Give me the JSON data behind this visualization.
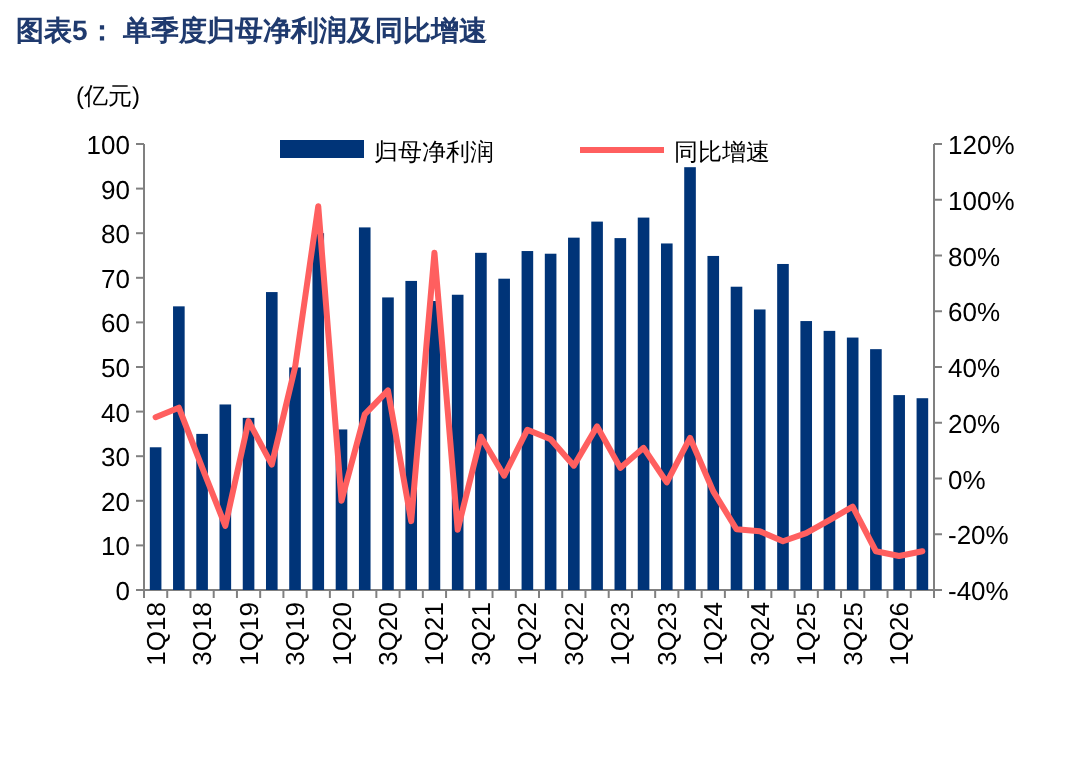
{
  "chart_data": {
    "type": "bar",
    "title": "图表5：  单季度归母净利润及同比增速",
    "ylabel": "(亿元)",
    "categories": [
      "1Q18",
      null,
      "3Q18",
      null,
      "1Q19",
      null,
      "3Q19",
      null,
      "1Q20",
      null,
      "3Q20",
      null,
      "1Q21",
      null,
      "3Q21",
      null,
      "1Q22",
      null,
      "3Q22",
      null,
      "1Q23",
      null,
      "3Q23",
      null,
      "1Q24",
      null,
      "3Q24",
      null,
      "1Q25",
      null,
      "3Q25",
      null,
      "1Q26",
      null
    ],
    "series": [
      {
        "name": "归母净利润",
        "color": "#003478",
        "values": [
          32,
          63.6,
          35,
          41.6,
          38.6,
          66.8,
          49.9,
          80,
          36,
          81.3,
          65.6,
          69.3,
          64.8,
          66.2,
          75.6,
          69.8,
          76,
          75.4,
          79,
          82.6,
          78.9,
          83.5,
          77.7,
          94.8,
          74.9,
          68,
          62.9,
          73.1,
          60.3,
          58.1,
          56.6,
          54,
          43.7,
          43
        ]
      },
      {
        "name": "同比增速",
        "type": "line",
        "axis": "y2",
        "color": "#ff5f5f",
        "values": [
          22,
          25.4,
          4,
          -17,
          20.6,
          5,
          39.8,
          97.7,
          -8,
          23,
          31.6,
          -15.3,
          81,
          -18.4,
          15,
          1,
          17.5,
          14.1,
          4.6,
          18.7,
          3.8,
          11,
          -1.4,
          14.6,
          -4.6,
          -18.2,
          -18.9,
          -22.5,
          -19.6,
          -14.9,
          -10.1,
          -26.1,
          -27.8,
          -26.1
        ]
      }
    ],
    "ylim": [
      0,
      100
    ],
    "yticks": [
      0,
      10,
      20,
      30,
      40,
      50,
      60,
      70,
      80,
      90,
      100
    ],
    "y2lim": [
      -40,
      120
    ],
    "y2ticks": [
      {
        "value": -40,
        "label": "-40%"
      },
      {
        "value": -20,
        "label": "-20%"
      },
      {
        "value": 0,
        "label": "0%"
      },
      {
        "value": 20,
        "label": "20%"
      },
      {
        "value": 40,
        "label": "40%"
      },
      {
        "value": 60,
        "label": "60%"
      },
      {
        "value": 80,
        "label": "80%"
      },
      {
        "value": 100,
        "label": "100%"
      },
      {
        "value": 120,
        "label": "120%"
      }
    ],
    "legend": "top"
  }
}
